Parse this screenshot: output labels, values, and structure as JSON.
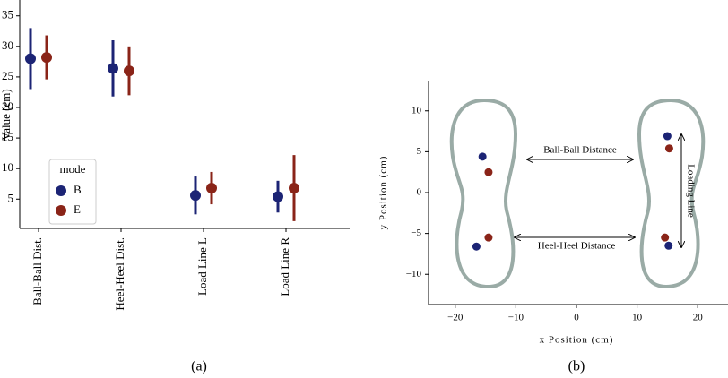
{
  "chart_data": [
    {
      "type": "errorbar",
      "ylabel": "Value (cm)",
      "caption": "(a)",
      "legend_title": "mode",
      "categories": [
        "Ball-Ball Dist.",
        "Heel-Heel Dist.",
        "Load Line L",
        "Load Line R"
      ],
      "series": [
        {
          "name": "B",
          "color": "#1c2475",
          "values": [
            28,
            26.4,
            5.6,
            5.4
          ],
          "errors": [
            5,
            4.6,
            3.1,
            2.6
          ]
        },
        {
          "name": "E",
          "color": "#8a2418",
          "values": [
            28.2,
            26,
            6.8,
            6.8
          ],
          "errors": [
            3.6,
            4,
            2.65,
            5.4
          ]
        }
      ],
      "ylim": [
        0.2,
        37.6
      ],
      "yticks": [
        5,
        10,
        15,
        20,
        25,
        30,
        35
      ]
    },
    {
      "type": "scatter",
      "xlabel": "x Position (cm)",
      "ylabel": "y Position (cm)",
      "caption": "(b)",
      "annotations": [
        "Ball-Ball Distance",
        "Heel-Heel Distance",
        "Loading Line"
      ],
      "series": [
        {
          "name": "B",
          "color": "#1c2475",
          "x": [
            -15.5,
            -16.5,
            15,
            15.2
          ],
          "y": [
            4.4,
            -6.6,
            6.9,
            -6.5
          ]
        },
        {
          "name": "E",
          "color": "#8a2418",
          "x": [
            -14.5,
            -14.5,
            15.3,
            14.6
          ],
          "y": [
            2.5,
            -5.5,
            5.4,
            -5.5
          ]
        }
      ],
      "xlim": [
        -24.4,
        25
      ],
      "ylim": [
        -13.7,
        13.7
      ],
      "xticks": [
        {
          "value": -20,
          "label": "−20"
        },
        {
          "value": -10,
          "label": "−10"
        },
        0,
        10,
        20
      ],
      "yticks": [
        {
          "value": -10,
          "label": "−10"
        },
        {
          "value": -5,
          "label": "−5"
        },
        0,
        5,
        10
      ]
    }
  ]
}
